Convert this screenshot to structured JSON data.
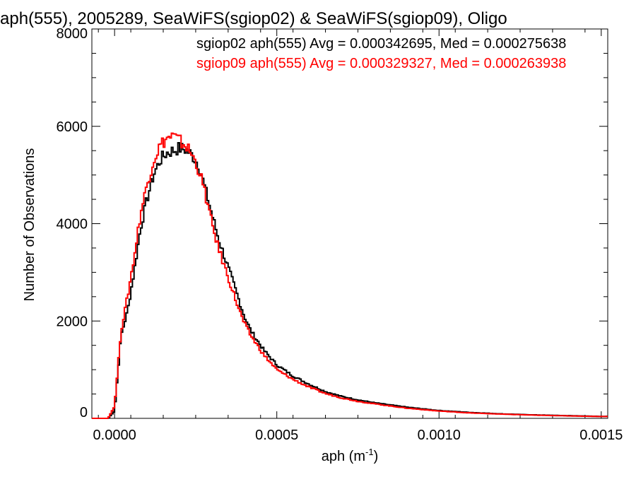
{
  "chart_data": {
    "type": "line",
    "title": "aph(555), 2005289, SeaWiFS(sgiop02) & SeaWiFS(sgiop09), Oligo",
    "xlabel": "aph (m",
    "xlabel_sup": "-1",
    "xlabel_tail": ")",
    "ylabel": "Number of Observations",
    "xlim": [
      -7e-05,
      0.00152
    ],
    "ylim": [
      0,
      8000
    ],
    "x_ticks": [
      0.0,
      0.0005,
      0.001,
      0.0015
    ],
    "x_tick_labels": [
      "0.0000",
      "0.0005",
      "0.0010",
      "0.0015"
    ],
    "y_ticks": [
      0,
      2000,
      4000,
      6000,
      8000
    ],
    "y_tick_labels": [
      "0",
      "2000",
      "4000",
      "6000",
      "8000"
    ],
    "grid": false,
    "legend_placement": "top-right",
    "annotations": [
      {
        "text": "sgiop02 aph(555) Avg = 0.000342695, Med = 0.000275638",
        "color": "#000000"
      },
      {
        "text": "sgiop09 aph(555) Avg = 0.000329327, Med = 0.000263938",
        "color": "#ff0000"
      }
    ],
    "series": [
      {
        "color": "#000000",
        "x": [
          -7e-05,
          -2e-05,
          0.0,
          2e-05,
          4e-05,
          6e-05,
          8e-05,
          0.0001,
          0.00012,
          0.00014,
          0.00016,
          0.00018,
          0.0002,
          0.00022,
          0.00024,
          0.00026,
          0.00028,
          0.0003,
          0.00032,
          0.00034,
          0.00036,
          0.00038,
          0.0004,
          0.00042,
          0.00044,
          0.00046,
          0.00048,
          0.0005,
          0.00055,
          0.0006,
          0.00065,
          0.0007,
          0.00075,
          0.0008,
          0.0009,
          0.001,
          0.0011,
          0.0012,
          0.0013,
          0.0014,
          0.0015
        ],
        "y": [
          0,
          0,
          150,
          1700,
          2200,
          3000,
          3900,
          4500,
          5000,
          5300,
          5450,
          5500,
          5550,
          5520,
          5400,
          5200,
          4700,
          4200,
          3700,
          3300,
          2900,
          2500,
          2100,
          1800,
          1600,
          1400,
          1250,
          1100,
          870,
          700,
          550,
          450,
          380,
          320,
          230,
          160,
          120,
          90,
          70,
          55,
          40
        ]
      },
      {
        "color": "#ff0000",
        "x": [
          -7e-05,
          -2e-05,
          0.0,
          2e-05,
          4e-05,
          6e-05,
          8e-05,
          0.0001,
          0.00012,
          0.00014,
          0.00016,
          0.00018,
          0.0002,
          0.00022,
          0.00024,
          0.00026,
          0.00028,
          0.0003,
          0.00032,
          0.00034,
          0.00036,
          0.00038,
          0.0004,
          0.00042,
          0.00044,
          0.00046,
          0.00048,
          0.0005,
          0.00055,
          0.0006,
          0.00065,
          0.0007,
          0.00075,
          0.0008,
          0.0009,
          0.001,
          0.0011,
          0.0012,
          0.0013,
          0.0014,
          0.0015
        ],
        "y": [
          0,
          0,
          250,
          1800,
          2500,
          3300,
          4200,
          4800,
          5300,
          5600,
          5750,
          5800,
          5700,
          5600,
          5400,
          5100,
          4600,
          4000,
          3500,
          3100,
          2700,
          2300,
          1950,
          1700,
          1500,
          1300,
          1150,
          1000,
          800,
          640,
          510,
          420,
          350,
          300,
          210,
          150,
          110,
          85,
          65,
          50,
          38
        ]
      }
    ]
  }
}
